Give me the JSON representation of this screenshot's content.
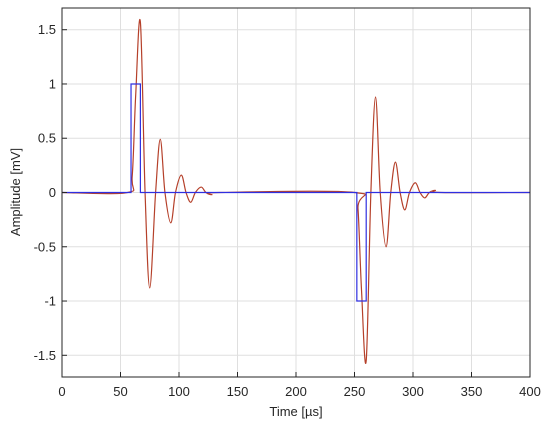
{
  "chart_data": {
    "type": "line",
    "xlabel": "Time [µs]",
    "ylabel": "Amplitude [mV]",
    "xlim": [
      0,
      400
    ],
    "xticks": [
      0,
      50,
      100,
      150,
      200,
      250,
      300,
      350,
      400
    ],
    "ylim": [
      -1.7,
      1.7
    ],
    "yticks": [
      -1.5,
      -1,
      -0.5,
      0,
      0.5,
      1,
      1.5
    ],
    "grid": true,
    "series": [
      {
        "color": "#b5402a",
        "smooth": true,
        "x": [
          0,
          56,
          60,
          63,
          67,
          71,
          75,
          80,
          84,
          88,
          93,
          97,
          102,
          106,
          110,
          114,
          119,
          123,
          128,
          135,
          250,
          253,
          256,
          260,
          264,
          268,
          272,
          277,
          281,
          285,
          289,
          293,
          297,
          302,
          306,
          310,
          314,
          319,
          324,
          400
        ],
        "values": [
          0,
          0,
          0.15,
          0.9,
          1.57,
          0,
          -0.88,
          0,
          0.49,
          0,
          -0.28,
          0,
          0.16,
          0,
          -0.09,
          0,
          0.05,
          0,
          -0.02,
          0,
          0,
          -0.15,
          -0.9,
          -1.55,
          0,
          0.88,
          0,
          -0.5,
          0,
          0.28,
          0,
          -0.16,
          0,
          0.09,
          0,
          -0.05,
          0,
          0.02,
          0,
          0
        ]
      },
      {
        "color": "#2f2fe0",
        "smooth": false,
        "x": [
          0,
          59,
          59,
          67,
          67,
          252,
          252,
          260,
          260,
          400
        ],
        "values": [
          0,
          0,
          1,
          1,
          0,
          0,
          -1,
          -1,
          0,
          0
        ]
      }
    ]
  }
}
